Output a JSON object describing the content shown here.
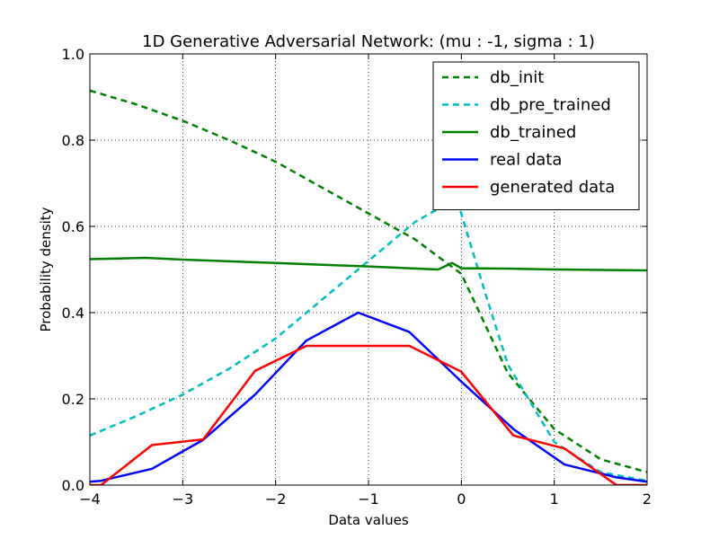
{
  "chart_data": {
    "type": "line",
    "title": "1D Generative Adversarial Network: (mu :  -1, sigma :   1)",
    "xlabel": "Data values",
    "ylabel": "Probability density",
    "xlim": [
      -4,
      2
    ],
    "ylim": [
      0,
      1
    ],
    "xticks": [
      -4,
      -3,
      -2,
      -1,
      0,
      1,
      2
    ],
    "xtick_labels": [
      "−4",
      "−3",
      "−2",
      "−1",
      "0",
      "1",
      "2"
    ],
    "yticks": [
      0,
      0.2,
      0.4,
      0.6,
      0.8,
      1.0
    ],
    "ytick_labels": [
      "0.0",
      "0.2",
      "0.4",
      "0.6",
      "0.8",
      "1.0"
    ],
    "grid": true,
    "legend_position": "top-right",
    "series": [
      {
        "name": "db_init",
        "color": "#008000",
        "dash": "dashed",
        "x": [
          -4,
          -3.5,
          -3,
          -2.5,
          -2,
          -1.5,
          -1,
          -0.5,
          0,
          0.5,
          1,
          1.5,
          2
        ],
        "y": [
          0.915,
          0.883,
          0.845,
          0.8,
          0.75,
          0.69,
          0.63,
          0.57,
          0.49,
          0.26,
          0.13,
          0.06,
          0.03
        ]
      },
      {
        "name": "db_pre_trained",
        "color": "#00BFBF",
        "dash": "dashed",
        "x": [
          -4,
          -3.5,
          -3,
          -2.5,
          -2,
          -1.5,
          -1,
          -0.5,
          -0.05,
          0.25,
          0.5,
          1,
          1.5,
          2
        ],
        "y": [
          0.115,
          0.16,
          0.21,
          0.27,
          0.34,
          0.43,
          0.52,
          0.61,
          0.665,
          0.45,
          0.28,
          0.1,
          0.03,
          0.01
        ]
      },
      {
        "name": "db_trained",
        "color": "#008000",
        "dash": "solid",
        "x": [
          -4,
          -3.4,
          -3,
          -2,
          -1,
          -0.25,
          -0.1,
          0,
          0.5,
          1,
          1.5,
          2
        ],
        "y": [
          0.524,
          0.527,
          0.523,
          0.515,
          0.507,
          0.5,
          0.515,
          0.503,
          0.502,
          0.5,
          0.499,
          0.498
        ]
      },
      {
        "name": "real data",
        "color": "#0000FF",
        "dash": "solid",
        "x": [
          -4,
          -3.88,
          -3.33,
          -2.78,
          -2.22,
          -1.67,
          -1.11,
          -0.56,
          0,
          0.56,
          1.11,
          1.67,
          2
        ],
        "y": [
          0.008,
          0.01,
          0.038,
          0.105,
          0.21,
          0.335,
          0.4,
          0.355,
          0.24,
          0.13,
          0.048,
          0.018,
          0.008
        ]
      },
      {
        "name": "generated data",
        "color": "#FF0000",
        "dash": "solid",
        "x": [
          -4,
          -3.88,
          -3.33,
          -2.78,
          -2.22,
          -1.67,
          -1.11,
          -0.56,
          0,
          0.56,
          1.11,
          1.67,
          2
        ],
        "y": [
          0.0,
          0.0,
          0.093,
          0.106,
          0.265,
          0.323,
          0.323,
          0.323,
          0.263,
          0.115,
          0.085,
          0.0,
          0.0
        ]
      }
    ]
  }
}
